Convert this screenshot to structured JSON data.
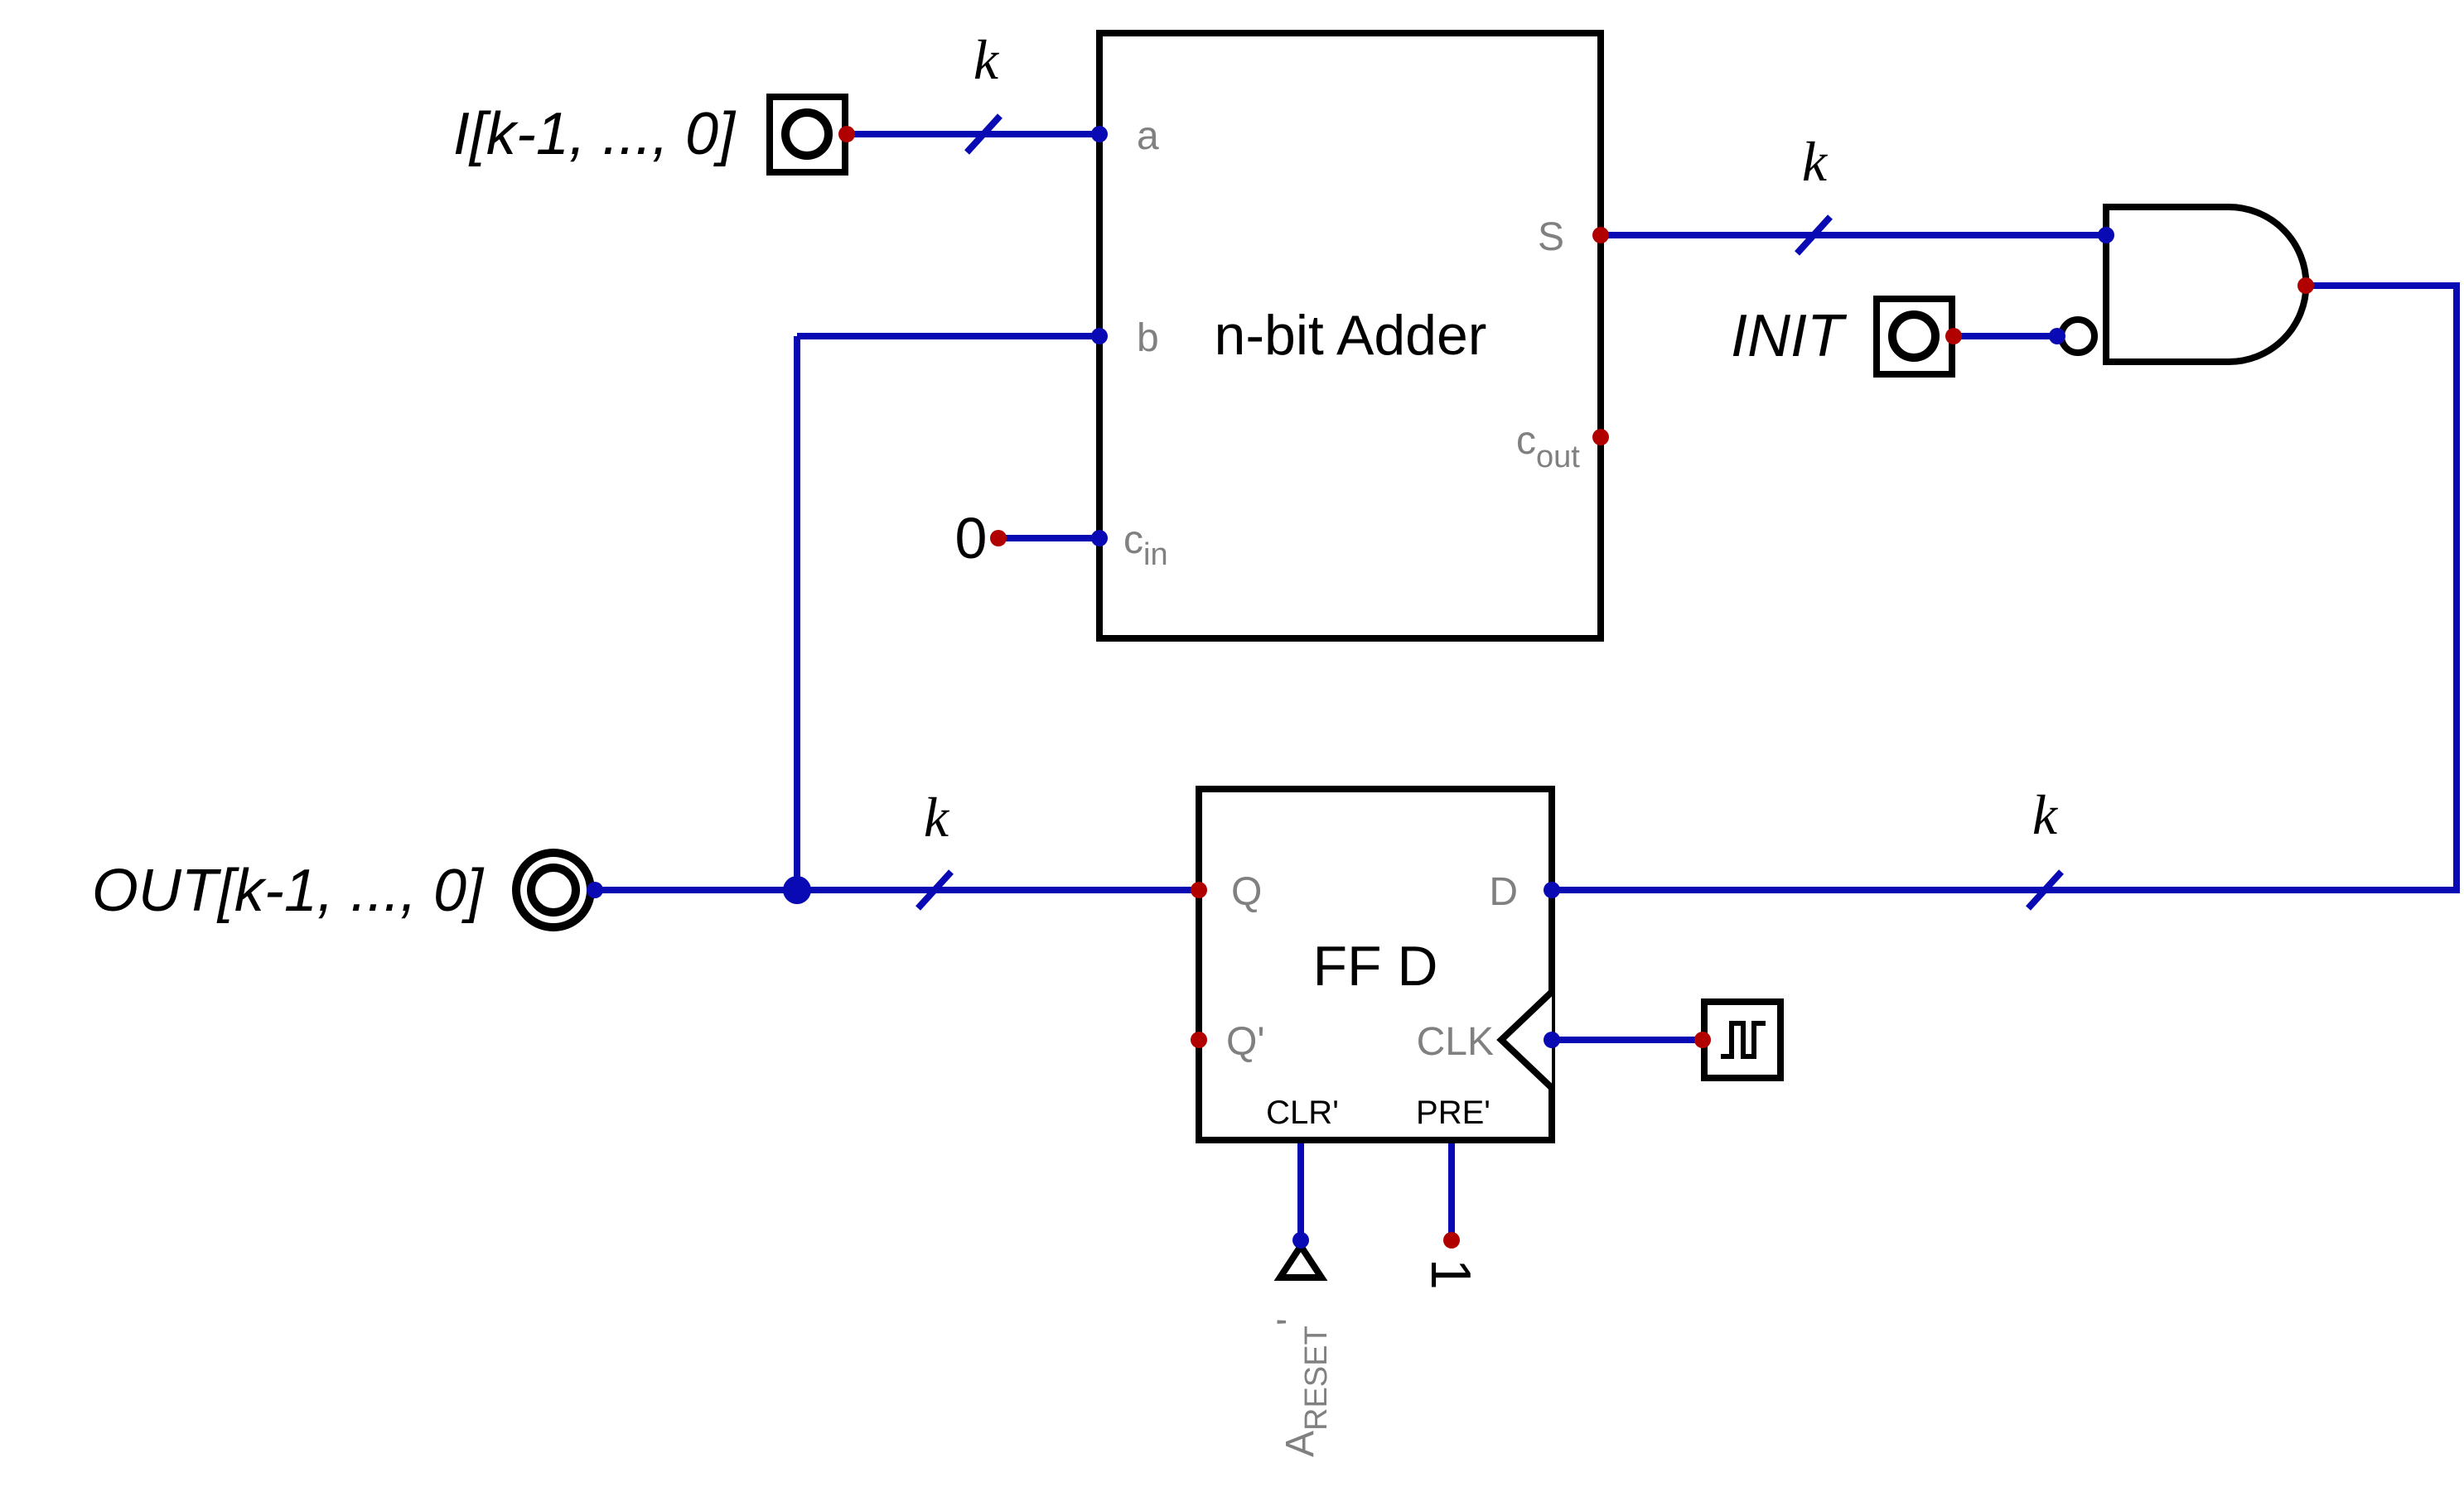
{
  "inputs": {
    "i_label": "I[k-1, ..., 0]",
    "init_label": "INIT",
    "zero_const": "0",
    "one_const": "1"
  },
  "outputs": {
    "out_label": "OUT[k-1, ..., 0]"
  },
  "bus_width_label": "k",
  "adder": {
    "title": "n-bit Adder",
    "port_a": "a",
    "port_b": "b",
    "port_s": "S",
    "port_cin_main": "c",
    "port_cin_sub": "in",
    "port_cout_main": "c",
    "port_cout_sub": "out"
  },
  "flipflop": {
    "title": "FF D",
    "port_q": "Q",
    "port_qn": "Q'",
    "port_d": "D",
    "port_clk": "CLK",
    "port_clr": "CLR'",
    "port_pre": "PRE'"
  },
  "reset": {
    "main": "A",
    "sub": "RESET",
    "prime": "'"
  },
  "colors": {
    "wire": "#0a0ab4",
    "pin_output": "#b00000",
    "component": "#000000",
    "port_label": "#808080"
  }
}
